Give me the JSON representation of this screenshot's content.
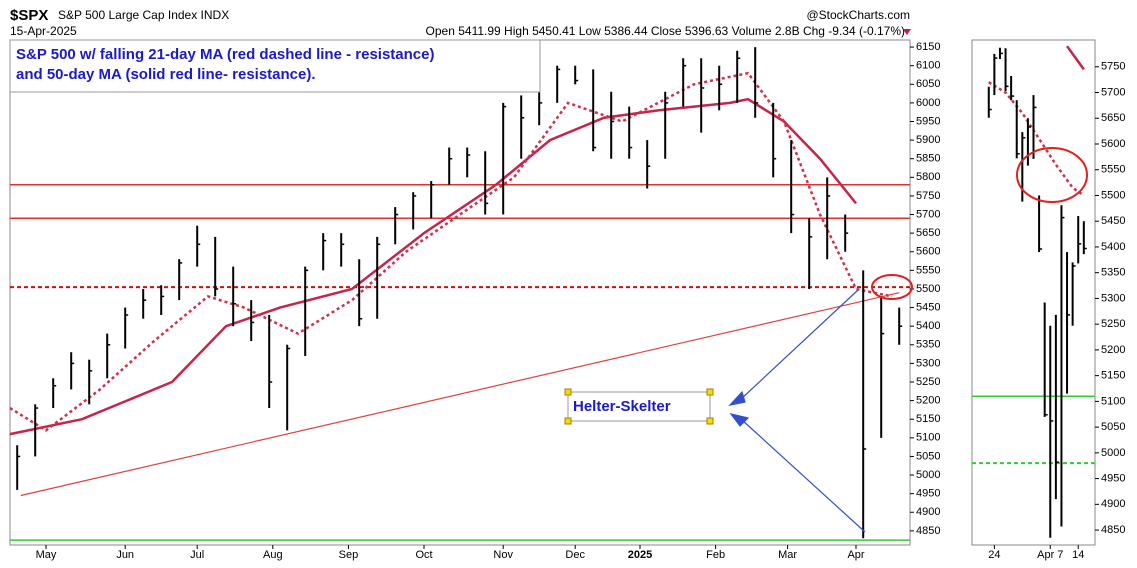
{
  "header": {
    "symbol": "$SPX",
    "name": "S&P 500 Large Cap Index INDX",
    "date": "15-Apr-2025",
    "quote": "Open 5411.99 High 5450.41 Low 5386.44 Close 5396.63 Volume 2.8B Chg -9.34 (-0.17%)",
    "brand": "@StockCharts.com",
    "note_line1": "S&P 500 w/ falling 21-day MA (red dashed line - resistance)",
    "note_line2": "and 50-day MA (solid red line- resistance).",
    "callout": "Helter-Skelter"
  },
  "chart_data": [
    {
      "type": "ohlc",
      "bar_color": "#000000",
      "x": [
        2,
        7,
        12,
        17,
        22,
        27,
        32,
        37,
        42,
        47,
        52,
        57,
        62,
        67,
        72,
        77,
        82,
        87,
        92,
        97,
        102,
        107,
        112,
        117,
        122,
        127,
        132,
        137,
        142,
        147,
        152,
        157,
        162,
        167,
        172,
        177,
        182,
        187,
        192,
        197,
        202,
        207,
        212,
        217,
        222,
        227,
        232,
        237,
        242,
        247
      ],
      "low": [
        4960,
        5050,
        5180,
        5230,
        5190,
        5260,
        5340,
        5420,
        5430,
        5470,
        5560,
        5480,
        5400,
        5360,
        5180,
        5120,
        5320,
        5550,
        5560,
        5400,
        5420,
        5620,
        5660,
        5690,
        5780,
        5800,
        5700,
        5700,
        5850,
        5940,
        6000,
        6050,
        5870,
        5850,
        5850,
        5770,
        5850,
        5990,
        5920,
        5980,
        6000,
        5960,
        5800,
        5650,
        5500,
        5580,
        5600,
        4830,
        5100,
        5350
      ],
      "high": [
        5080,
        5190,
        5260,
        5330,
        5310,
        5380,
        5450,
        5500,
        5510,
        5580,
        5670,
        5640,
        5560,
        5470,
        5430,
        5350,
        5560,
        5650,
        5650,
        5580,
        5640,
        5720,
        5760,
        5790,
        5880,
        5880,
        5870,
        6000,
        6020,
        6030,
        6100,
        6100,
        6090,
        6030,
        5990,
        5900,
        6030,
        6120,
        6120,
        6100,
        6140,
        6150,
        6000,
        5900,
        5690,
        5800,
        5700,
        5550,
        5480,
        5450
      ],
      "close": [
        5050,
        5180,
        5240,
        5300,
        5280,
        5350,
        5430,
        5470,
        5480,
        5570,
        5620,
        5500,
        5460,
        5410,
        5250,
        5340,
        5550,
        5630,
        5620,
        5420,
        5620,
        5700,
        5750,
        5780,
        5850,
        5860,
        5730,
        5990,
        5960,
        6000,
        6090,
        6060,
        5880,
        5950,
        5880,
        5830,
        6000,
        6100,
        6040,
        6050,
        6120,
        6000,
        5850,
        5700,
        5640,
        5750,
        5650,
        5070,
        5380,
        5400
      ],
      "ma21": {
        "color": "#d0304a",
        "dashed": true,
        "x": [
          0,
          10,
          25,
          40,
          55,
          65,
          80,
          95,
          110,
          125,
          140,
          155,
          170,
          190,
          205,
          215,
          225,
          235,
          245
        ],
        "values": [
          5180,
          5120,
          5230,
          5360,
          5480,
          5450,
          5380,
          5470,
          5600,
          5700,
          5800,
          6000,
          5950,
          6050,
          6080,
          5950,
          5700,
          5500,
          5480
        ]
      },
      "ma50": {
        "color": "#c8234a",
        "dashed": false,
        "x": [
          0,
          20,
          45,
          60,
          75,
          95,
          115,
          135,
          150,
          165,
          180,
          200,
          205,
          215,
          225,
          235
        ],
        "values": [
          5110,
          5150,
          5250,
          5400,
          5450,
          5500,
          5650,
          5780,
          5900,
          5960,
          5980,
          6000,
          6010,
          5950,
          5850,
          5730
        ]
      },
      "hlines": [
        {
          "value": 5780,
          "color": "#e03030",
          "dashed": false
        },
        {
          "value": 5690,
          "color": "#e03030",
          "dashed": false
        },
        {
          "value": 5505,
          "color": "#d01010",
          "dashed": true
        },
        {
          "value": 4825,
          "color": "#33cc33",
          "dashed": false
        }
      ],
      "trendline": {
        "color": "#e04040",
        "x": [
          3,
          247
        ],
        "values": [
          4945,
          5490
        ]
      },
      "xlim": [
        0,
        250
      ],
      "ylim": [
        4812,
        6169
      ],
      "xticks": [
        {
          "value": 10,
          "label": "May"
        },
        {
          "value": 32,
          "label": "Jun"
        },
        {
          "value": 52,
          "label": "Jul"
        },
        {
          "value": 73,
          "label": "Aug"
        },
        {
          "value": 94,
          "label": "Sep"
        },
        {
          "value": 115,
          "label": "Oct"
        },
        {
          "value": 137,
          "label": "Nov"
        },
        {
          "value": 157,
          "label": "Dec"
        },
        {
          "value": 175,
          "label": "2025"
        },
        {
          "value": 196,
          "label": "Feb"
        },
        {
          "value": 216,
          "label": "Mar"
        },
        {
          "value": 235,
          "label": "Apr"
        }
      ],
      "yticks": [
        4850,
        4900,
        4950,
        5000,
        5050,
        5100,
        5150,
        5200,
        5250,
        5300,
        5350,
        5400,
        5450,
        5500,
        5550,
        5600,
        5650,
        5700,
        5750,
        5800,
        5850,
        5900,
        5950,
        6000,
        6050,
        6100,
        6150
      ]
    },
    {
      "type": "ohlc",
      "bar_color": "#000000",
      "x": [
        0,
        1,
        2,
        3,
        4,
        5,
        6,
        7,
        8,
        9,
        10,
        11,
        12,
        13,
        14,
        15,
        16,
        17
      ],
      "low": [
        5651,
        5695,
        5765,
        5703,
        5685,
        5572,
        5488,
        5558,
        5571,
        5390,
        5070,
        4835,
        4910,
        4857,
        5115,
        5247,
        5368,
        5386
      ],
      "high": [
        5711,
        5775,
        5787,
        5786,
        5732,
        5685,
        5623,
        5650,
        5695,
        5500,
        5292,
        5247,
        5268,
        5481,
        5390,
        5370,
        5460,
        5450
      ],
      "close": [
        5667,
        5767,
        5776,
        5712,
        5693,
        5581,
        5612,
        5633,
        5671,
        5396,
        5074,
        5062,
        4982,
        5457,
        5268,
        5363,
        5406,
        5397
      ],
      "ma21": {
        "color": "#d0304a",
        "dashed": true,
        "x": [
          0,
          3,
          6,
          9,
          12,
          15,
          17
        ],
        "values": [
          5720,
          5700,
          5660,
          5610,
          5560,
          5515,
          5500
        ]
      },
      "ma50": {
        "color": "#c8234a",
        "dashed": false,
        "x": [
          14,
          15,
          16,
          17
        ],
        "values": [
          5790,
          5775,
          5760,
          5745
        ]
      },
      "hlines": [
        {
          "value": 5110,
          "color": "#33cc33",
          "dashed": false
        },
        {
          "value": 4980,
          "color": "#33cc33",
          "dashed": true
        }
      ],
      "xlim": [
        -3,
        19
      ],
      "ylim": [
        4821,
        5802
      ],
      "xticks": [
        {
          "value": 1,
          "label": "24"
        },
        {
          "value": 11,
          "label": "Apr 7"
        },
        {
          "value": 16,
          "label": "14"
        }
      ],
      "yticks": [
        4850,
        4900,
        4950,
        5000,
        5050,
        5100,
        5150,
        5200,
        5250,
        5300,
        5350,
        5400,
        5450,
        5500,
        5550,
        5600,
        5650,
        5700,
        5750
      ]
    }
  ]
}
